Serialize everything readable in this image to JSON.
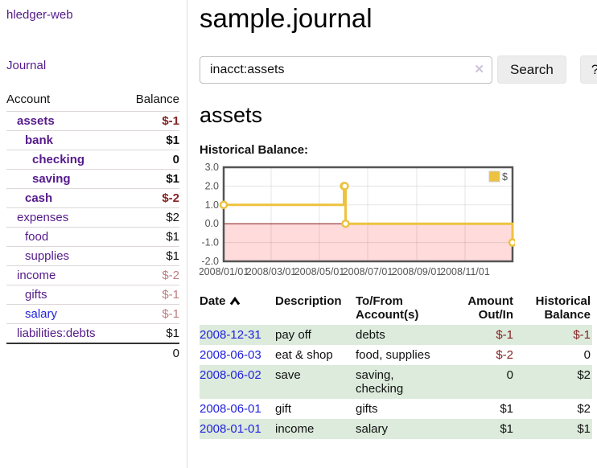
{
  "app": {
    "brand": "hledger-web",
    "nav": {
      "journal": "Journal"
    }
  },
  "sidebar": {
    "headers": {
      "account": "Account",
      "balance": "Balance"
    },
    "accounts": [
      {
        "name": "assets",
        "balance": "$-1"
      },
      {
        "name": "bank",
        "balance": "$1"
      },
      {
        "name": "checking",
        "balance": "0"
      },
      {
        "name": "saving",
        "balance": "$1"
      },
      {
        "name": "cash",
        "balance": "$-2"
      },
      {
        "name": "expenses",
        "balance": "$2"
      },
      {
        "name": "food",
        "balance": "$1"
      },
      {
        "name": "supplies",
        "balance": "$1"
      },
      {
        "name": "income",
        "balance": "$-2"
      },
      {
        "name": "gifts",
        "balance": "$-1"
      },
      {
        "name": "salary",
        "balance": "$-1"
      },
      {
        "name": "liabilities:debts",
        "balance": "$1"
      }
    ],
    "total": "0"
  },
  "main": {
    "title": "sample.journal",
    "search": {
      "value": "inacct:assets",
      "clear_icon": "✕",
      "button_label": "Search",
      "help_label": "?"
    },
    "account_heading": "assets",
    "chart_label": "Historical Balance:",
    "register": {
      "headers": {
        "date": "Date",
        "sort_icon": "chevron-up",
        "description": "Description",
        "accounts": "To/From Account(s)",
        "amount": "Amount Out/In",
        "balance": "Historical Balance"
      },
      "rows": [
        {
          "date": "2008-12-31",
          "description": "pay off",
          "accounts": "debts",
          "amount": "$-1",
          "balance": "$-1"
        },
        {
          "date": "2008-06-03",
          "description": "eat & shop",
          "accounts": "food, supplies",
          "amount": "$-2",
          "balance": "0"
        },
        {
          "date": "2008-06-02",
          "description": "save",
          "accounts": "saving, checking",
          "amount": "0",
          "balance": "$2"
        },
        {
          "date": "2008-06-01",
          "description": "gift",
          "accounts": "gifts",
          "amount": "$1",
          "balance": "$2"
        },
        {
          "date": "2008-01-01",
          "description": "income",
          "accounts": "salary",
          "amount": "$1",
          "balance": "$1"
        }
      ]
    }
  },
  "chart_data": {
    "type": "line",
    "style": "step",
    "title": "Historical Balance:",
    "series": [
      {
        "name": "$",
        "color": "#EDC240",
        "points": [
          [
            "2008-01-01",
            1
          ],
          [
            "2008-06-01",
            2
          ],
          [
            "2008-06-02",
            2
          ],
          [
            "2008-06-03",
            0
          ],
          [
            "2008-12-31",
            -1
          ]
        ]
      }
    ],
    "x_range": [
      "2008-01-01",
      "2008-12-31"
    ],
    "xticks": [
      "2008/01/01",
      "2008/03/01",
      "2008/05/01",
      "2008/07/01",
      "2008/09/01",
      "2008/11/01"
    ],
    "yticks": [
      3.0,
      2.0,
      1.0,
      0.0,
      -1.0,
      -2.0
    ],
    "ylim": [
      -2,
      3
    ],
    "grid": true,
    "legend": {
      "label": "$",
      "position": "top-right"
    },
    "colors": {
      "negative_region": "#FFDBDB",
      "zero_line": "#8B1A1A",
      "border": "#545454",
      "gridline": "rgba(0,0,0,0.10)"
    }
  }
}
